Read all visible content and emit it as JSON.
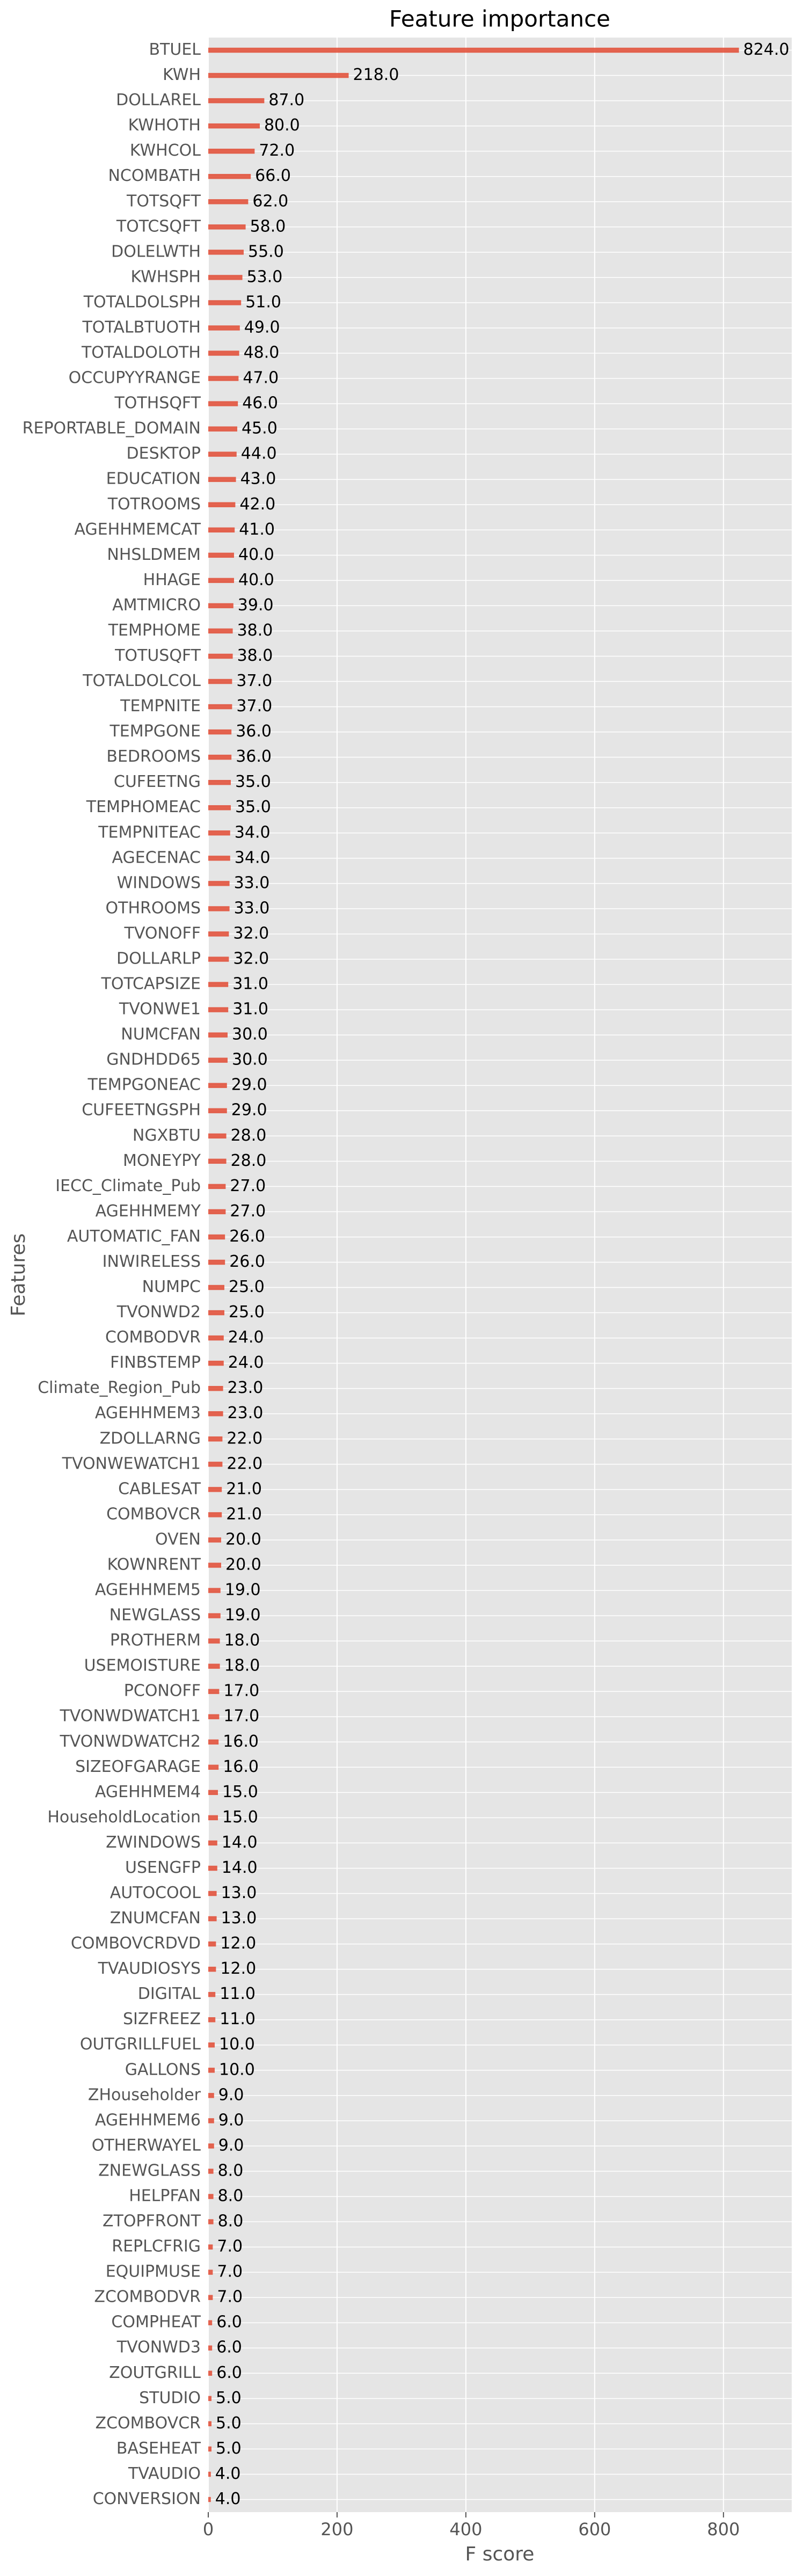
{
  "chart_data": {
    "type": "barh",
    "title": "Feature importance",
    "xlabel": "F score",
    "ylabel": "Features",
    "categories": [
      "BTUEL",
      "KWH",
      "DOLLAREL",
      "KWHOTH",
      "KWHCOL",
      "NCOMBATH",
      "TOTSQFT",
      "TOTCSQFT",
      "DOLELWTH",
      "KWHSPH",
      "TOTALDOLSPH",
      "TOTALBTUOTH",
      "TOTALDOLOTH",
      "OCCUPYYRANGE",
      "TOTHSQFT",
      "REPORTABLE_DOMAIN",
      "DESKTOP",
      "EDUCATION",
      "TOTROOMS",
      "AGEHHMEMCAT",
      "NHSLDMEM",
      "HHAGE",
      "AMTMICRO",
      "TEMPHOME",
      "TOTUSQFT",
      "TOTALDOLCOL",
      "TEMPNITE",
      "TEMPGONE",
      "BEDROOMS",
      "CUFEETNG",
      "TEMPHOMEAC",
      "TEMPNITEAC",
      "AGECENAC",
      "WINDOWS",
      "OTHROOMS",
      "TVONOFF",
      "DOLLARLP",
      "TOTCAPSIZE",
      "TVONWE1",
      "NUMCFAN",
      "GNDHDD65",
      "TEMPGONEAC",
      "CUFEETNGSPH",
      "NGXBTU",
      "MONEYPY",
      "IECC_Climate_Pub",
      "AGEHHMEMY",
      "AUTOMATIC_FAN",
      "INWIRELESS",
      "NUMPC",
      "TVONWD2",
      "COMBODVR",
      "FINBSTEMP",
      "Climate_Region_Pub",
      "AGEHHMEM3",
      "ZDOLLARNG",
      "TVONWEWATCH1",
      "CABLESAT",
      "COMBOVCR",
      "OVEN",
      "KOWNRENT",
      "AGEHHMEM5",
      "NEWGLASS",
      "PROTHERM",
      "USEMOISTURE",
      "PCONOFF",
      "TVONWDWATCH1",
      "TVONWDWATCH2",
      "SIZEOFGARAGE",
      "AGEHHMEM4",
      "HouseholdLocation",
      "ZWINDOWS",
      "USENGFP",
      "AUTOCOOL",
      "ZNUMCFAN",
      "COMBOVCRDVD",
      "TVAUDIOSYS",
      "DIGITAL",
      "SIZFREEZ",
      "OUTGRILLFUEL",
      "GALLONS",
      "ZHouseholder",
      "AGEHHMEM6",
      "OTHERWAYEL",
      "ZNEWGLASS",
      "HELPFAN",
      "ZTOPFRONT",
      "REPLCFRIG",
      "EQUIPMUSE",
      "ZCOMBODVR",
      "COMPHEAT",
      "TVONWD3",
      "ZOUTGRILL",
      "STUDIO",
      "ZCOMBOVCR",
      "BASEHEAT",
      "TVAUDIO",
      "CONVERSION"
    ],
    "values": [
      824,
      218,
      87,
      80,
      72,
      66,
      62,
      58,
      55,
      53,
      51,
      49,
      48,
      47,
      46,
      45,
      44,
      43,
      42,
      41,
      40,
      40,
      39,
      38,
      38,
      37,
      37,
      36,
      36,
      35,
      35,
      34,
      34,
      33,
      33,
      32,
      32,
      31,
      31,
      30,
      30,
      29,
      29,
      28,
      28,
      27,
      27,
      26,
      26,
      25,
      25,
      24,
      24,
      23,
      23,
      22,
      22,
      21,
      21,
      20,
      20,
      19,
      19,
      18,
      18,
      17,
      17,
      16,
      16,
      15,
      15,
      14,
      14,
      13,
      13,
      12,
      12,
      11,
      11,
      10,
      10,
      9,
      9,
      9,
      8,
      8,
      8,
      7,
      7,
      7,
      6,
      6,
      6,
      5,
      5,
      5,
      4,
      4
    ],
    "value_labels": [
      "824.0",
      "218.0",
      "87.0",
      "80.0",
      "72.0",
      "66.0",
      "62.0",
      "58.0",
      "55.0",
      "53.0",
      "51.0",
      "49.0",
      "48.0",
      "47.0",
      "46.0",
      "45.0",
      "44.0",
      "43.0",
      "42.0",
      "41.0",
      "40.0",
      "40.0",
      "39.0",
      "38.0",
      "38.0",
      "37.0",
      "37.0",
      "36.0",
      "36.0",
      "35.0",
      "35.0",
      "34.0",
      "34.0",
      "33.0",
      "33.0",
      "32.0",
      "32.0",
      "31.0",
      "31.0",
      "30.0",
      "30.0",
      "29.0",
      "29.0",
      "28.0",
      "28.0",
      "27.0",
      "27.0",
      "26.0",
      "26.0",
      "25.0",
      "25.0",
      "24.0",
      "24.0",
      "23.0",
      "23.0",
      "22.0",
      "22.0",
      "21.0",
      "21.0",
      "20.0",
      "20.0",
      "19.0",
      "19.0",
      "18.0",
      "18.0",
      "17.0",
      "17.0",
      "16.0",
      "16.0",
      "15.0",
      "15.0",
      "14.0",
      "14.0",
      "13.0",
      "13.0",
      "12.0",
      "12.0",
      "11.0",
      "11.0",
      "10.0",
      "10.0",
      "9.0",
      "9.0",
      "9.0",
      "8.0",
      "8.0",
      "8.0",
      "7.0",
      "7.0",
      "7.0",
      "6.0",
      "6.0",
      "6.0",
      "5.0",
      "5.0",
      "5.0",
      "4.0",
      "4.0"
    ],
    "color": "#e24a33",
    "xlim": [
      0,
      906
    ],
    "xticks": [
      0,
      200,
      400,
      600,
      800
    ],
    "grid": true
  }
}
